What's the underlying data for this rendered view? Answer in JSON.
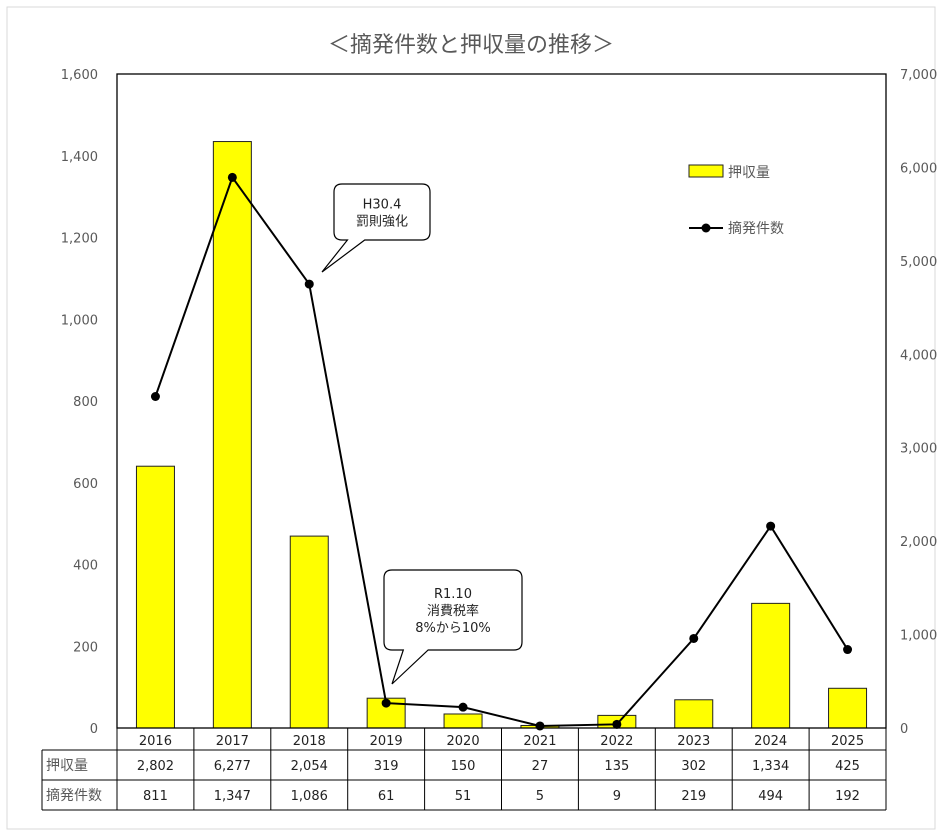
{
  "chart_data": {
    "type": "bar",
    "title": "＜摘発件数と押収量の推移＞",
    "categories": [
      "2016",
      "2017",
      "2018",
      "2019",
      "2020",
      "2021",
      "2022",
      "2023",
      "2024",
      "2025"
    ],
    "series": [
      {
        "name": "押収量",
        "type": "bar",
        "axis": "right",
        "color": "#FFFF00",
        "values": [
          2802,
          6277,
          2054,
          319,
          150,
          27,
          135,
          302,
          1334,
          425
        ]
      },
      {
        "name": "摘発件数",
        "type": "line",
        "axis": "left",
        "color": "#000000",
        "marker": "circle",
        "values": [
          811,
          1347,
          1086,
          61,
          51,
          5,
          9,
          219,
          494,
          192
        ]
      }
    ],
    "left_axis": {
      "ylim": [
        0,
        1600
      ],
      "ticks": [
        0,
        200,
        400,
        600,
        800,
        1000,
        1200,
        1400,
        1600
      ],
      "tick_labels": [
        "0",
        "200",
        "400",
        "600",
        "800",
        "1,000",
        "1,200",
        "1,400",
        "1,600"
      ]
    },
    "right_axis": {
      "ylim": [
        0,
        7000
      ],
      "ticks": [
        0,
        1000,
        2000,
        3000,
        4000,
        5000,
        6000,
        7000
      ],
      "tick_labels": [
        "0",
        "1,000",
        "2,000",
        "3,000",
        "4,000",
        "5,000",
        "6,000",
        "7,000"
      ]
    },
    "legend": {
      "placement": "top-right",
      "entries": [
        "押収量",
        "摘発件数"
      ]
    },
    "annotations": [
      {
        "lines": [
          "H30.4",
          "罰則強化"
        ],
        "points_to": "2018"
      },
      {
        "lines": [
          "R1.10",
          "消費税率",
          "8%から10%"
        ],
        "points_to": "2019"
      }
    ],
    "data_table": {
      "rows": [
        {
          "label": "押収量",
          "cells": [
            "2,802",
            "6,277",
            "2,054",
            "319",
            "150",
            "27",
            "135",
            "302",
            "1,334",
            "425"
          ]
        },
        {
          "label": "摘発件数",
          "cells": [
            "811",
            "1,347",
            "1,086",
            "61",
            "51",
            "5",
            "9",
            "219",
            "494",
            "192"
          ]
        }
      ]
    },
    "grid": false
  }
}
